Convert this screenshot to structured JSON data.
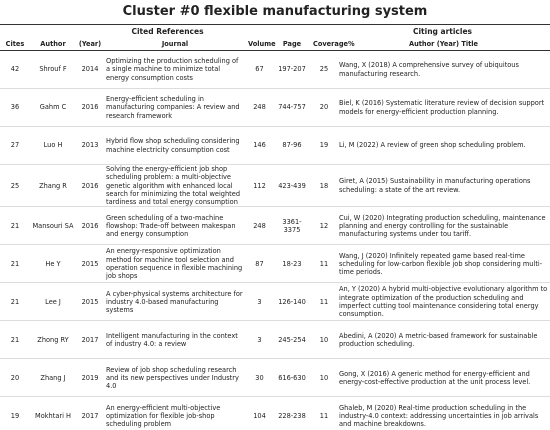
{
  "title": "Cluster #0 flexible manufacturing system",
  "groups": {
    "cited": "Cited References",
    "citing": "Citing articles"
  },
  "columns": [
    "Cites",
    "Author",
    "(Year)",
    "Journal",
    "Volume",
    "Page",
    "Coverage%",
    "Author (Year) Title"
  ],
  "rows": [
    [
      42,
      "Shrouf F",
      2014,
      "Optimizing the production scheduling of a single machine to minimize total energy consumption costs",
      67,
      "197-207",
      25,
      "Wang, X (2018) A comprehensive survey of ubiquitous manufacturing research."
    ],
    [
      36,
      "Gahm C",
      2016,
      "Energy-efficient scheduling in manufacturing companies: A review and research framework",
      248,
      "744-757",
      20,
      "Biel, K (2016) Systematic literature review of decision support models for energy-efficient production planning."
    ],
    [
      27,
      "Luo H",
      2013,
      "Hybrid flow shop scheduling considering machine electricity consumption cost",
      146,
      "87-96",
      19,
      "Li, M (2022) A review of green shop scheduling problem."
    ],
    [
      25,
      "Zhang R",
      2016,
      "Solving the energy-efficient job shop scheduling problem: a multi-objective genetic algorithm with enhanced local search for minimizing the total weighted tardiness and total energy consumption",
      112,
      "423-439",
      18,
      "Giret, A (2015) Sustainability in manufacturing operations scheduling: a state of the art review."
    ],
    [
      21,
      "Mansouri SA",
      2016,
      "Green scheduling of a two-machine flowshop: Trade-off between makespan and energy consumption",
      248,
      "3361-3375",
      12,
      "Cui, W (2020) Integrating production scheduling, maintenance planning and energy controlling for the sustainable manufacturing systems under tou tariff."
    ],
    [
      21,
      "He Y",
      2015,
      "An energy-responsive optimization method for machine tool selection and operation sequence in flexible machining job shops",
      87,
      "18-23",
      11,
      "Wang, J (2020) Infinitely repeated game based real-time scheduling for low-carbon flexible job shop considering multi-time periods."
    ],
    [
      21,
      "Lee J",
      2015,
      "A cyber-physical systems architecture for industry 4.0-based manufacturing systems",
      3,
      "126-140",
      11,
      "An, Y (2020) A hybrid multi-objective evolutionary algorithm to integrate optimization of the production scheduling and imperfect cutting tool maintenance considering total energy consumption."
    ],
    [
      21,
      "Zhong RY",
      2017,
      "Intelligent manufacturing in the context of industry 4.0: a review",
      3,
      "245-254",
      10,
      "Abedini, A (2020) A metric-based framework for sustainable production scheduling."
    ],
    [
      20,
      "Zhang J",
      2019,
      "Review of job shop scheduling research and its new perspectives under Industry 4.0",
      30,
      "616-630",
      10,
      "Gong, X (2016) A generic method for energy-efficient and energy-cost-effective production at the unit process level."
    ],
    [
      19,
      "Mokhtari H",
      2017,
      "An energy-efficient multi-objective optimization for flexible job-shop scheduling problem",
      104,
      "228-238",
      11,
      "Ghaleb, M (2020) Real-time production scheduling in the industry-4.0 context: addressing uncertainties in job arrivals and machine breakdowns."
    ]
  ]
}
